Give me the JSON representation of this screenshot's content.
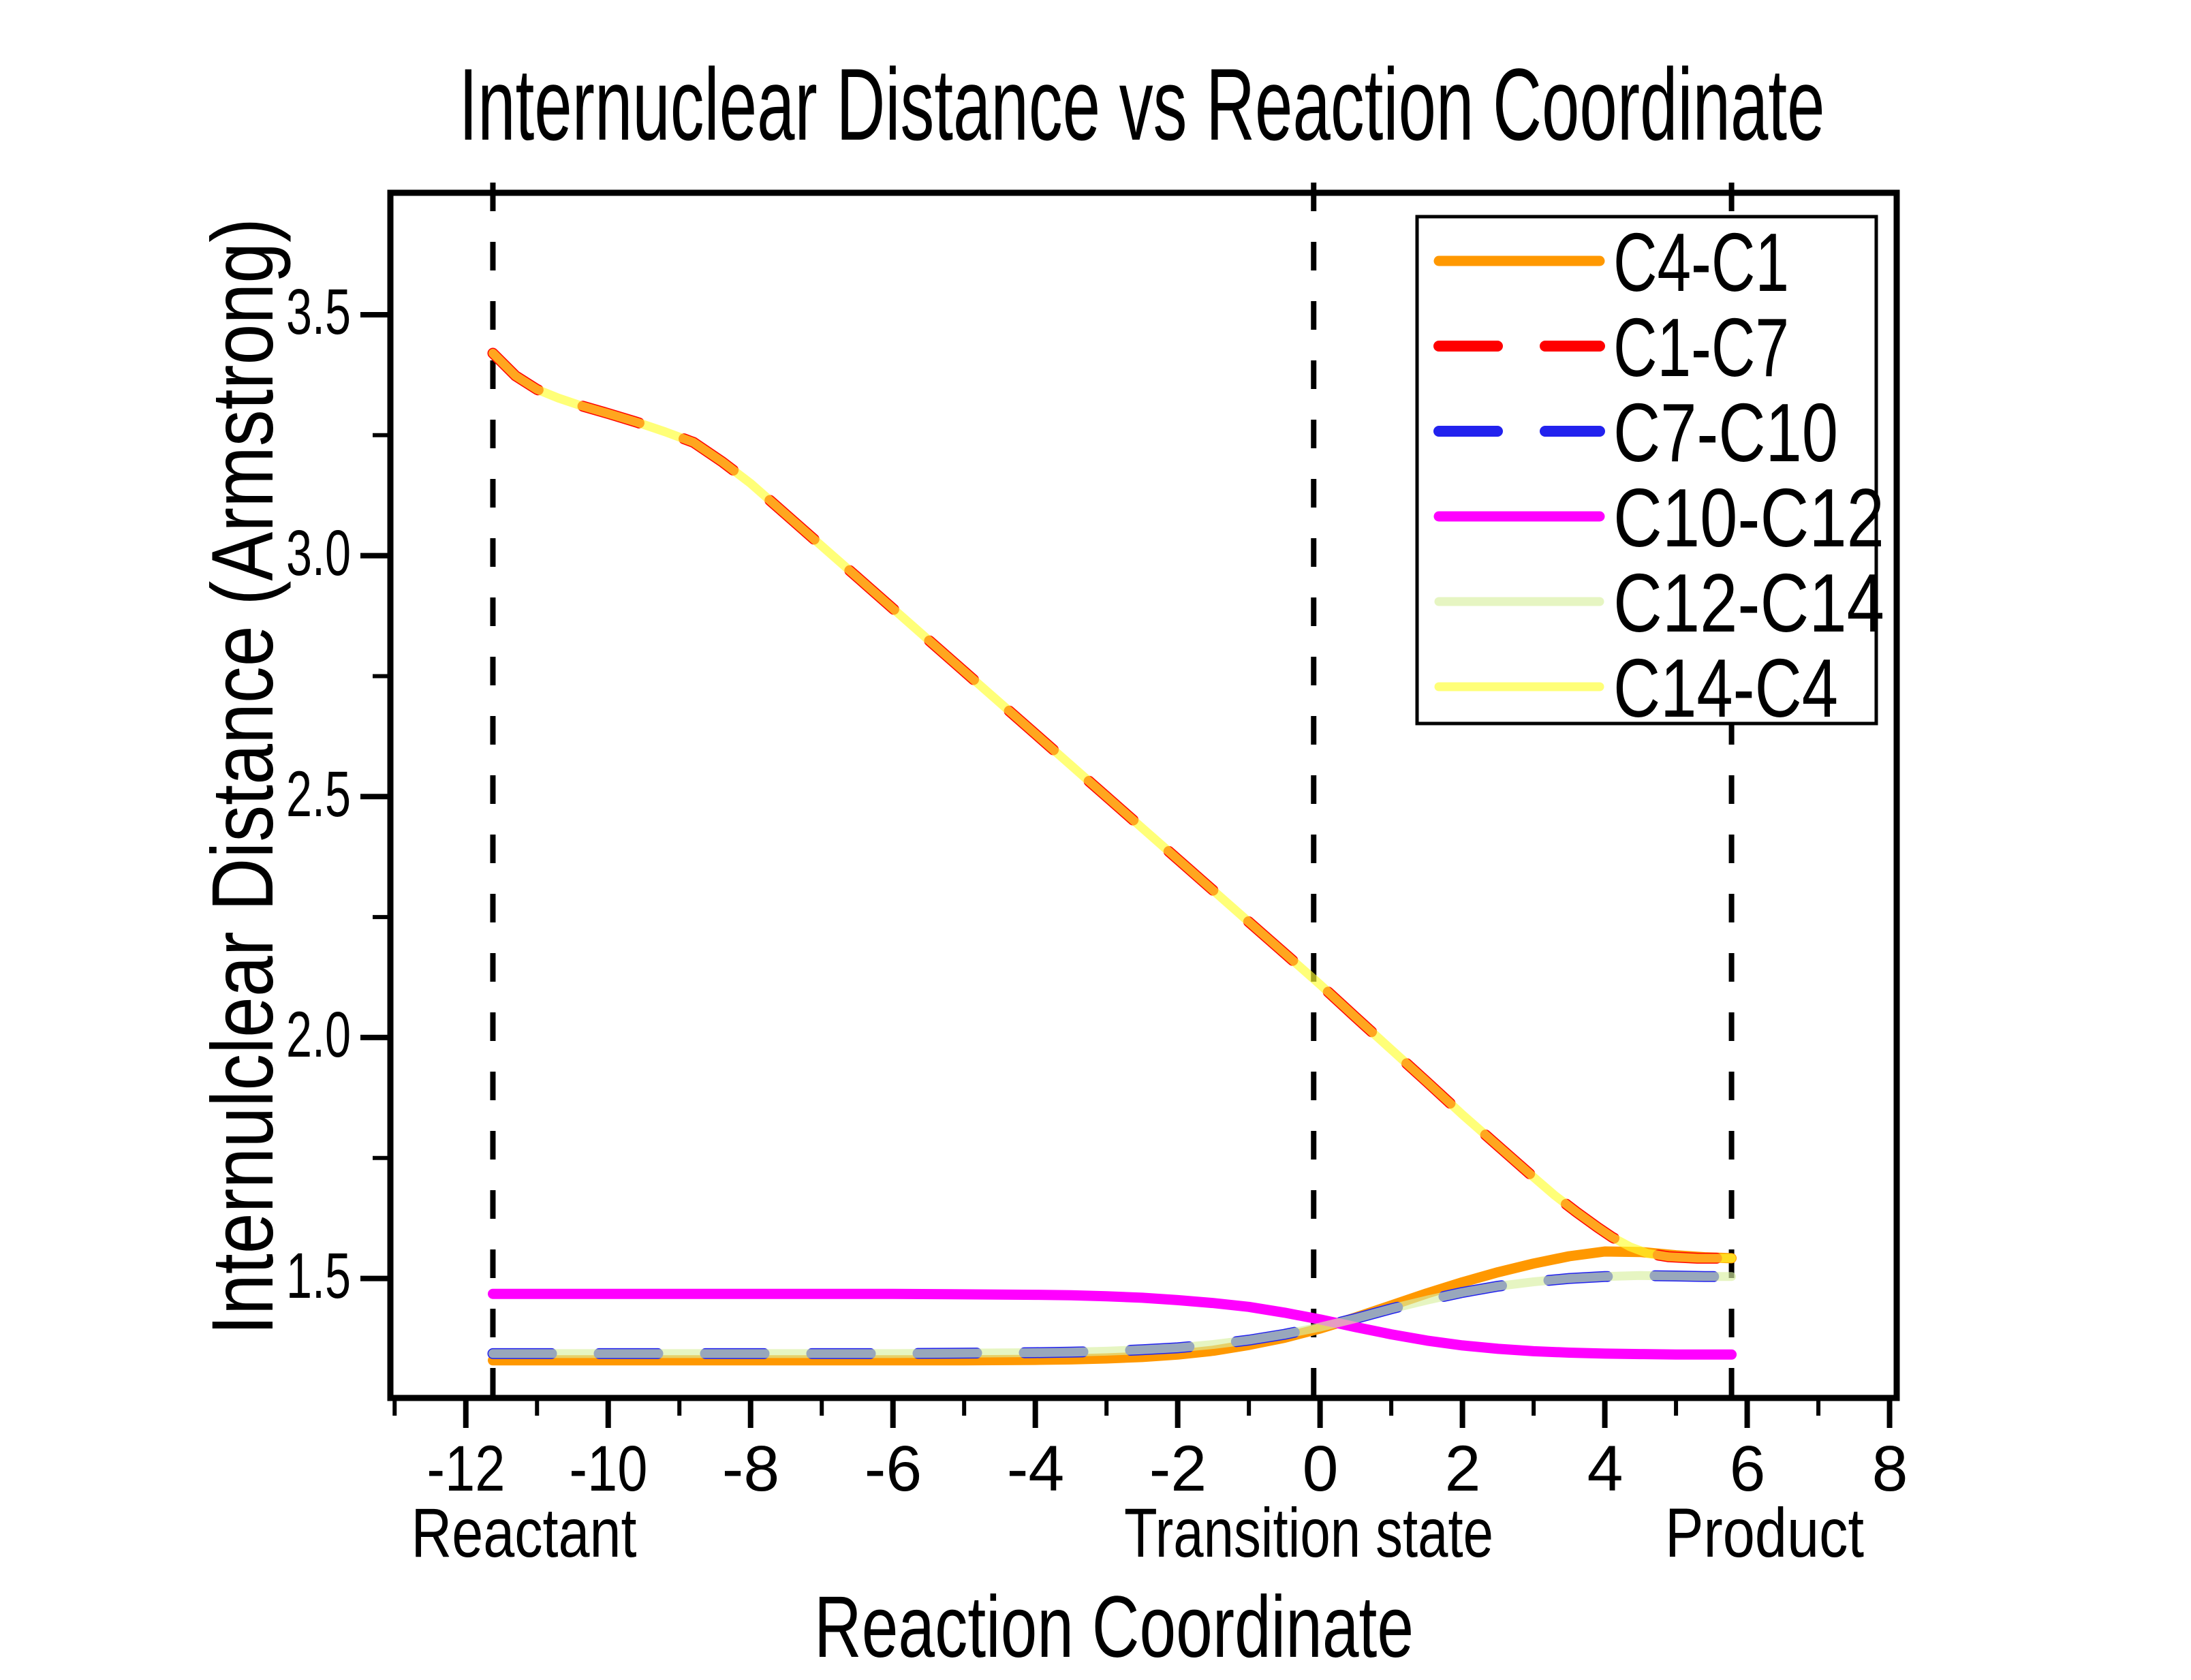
{
  "page": {
    "background_color": "#FFFFFF",
    "text_color": "#000000"
  },
  "chart_data": {
    "type": "line",
    "title": "Internuclear Distance vs Reaction Coordinate",
    "xlabel": "Reaction Coordinate",
    "ylabel": "Internulclear Distance (Armstrong)",
    "grid": false,
    "x_axis": {
      "min": -13.06,
      "max": 8.1,
      "major_ticks": [
        -12,
        -10,
        -8,
        -6,
        -4,
        -2,
        0,
        2,
        4,
        6,
        8
      ],
      "major_tick_labels": [
        "-12",
        "-10",
        "-8",
        "-6",
        "-4",
        "-2",
        "0",
        "2",
        "4",
        "6",
        "8"
      ],
      "minor_ticks": [
        -13,
        -11,
        -9,
        -7,
        -5,
        -3,
        -1,
        1,
        3,
        5,
        7
      ]
    },
    "y_axis": {
      "min": 1.252,
      "max": 3.753,
      "major_ticks": [
        1.5,
        2.0,
        2.5,
        3.0,
        3.5
      ],
      "major_tick_labels": [
        "1.5",
        "2.0",
        "2.5",
        "3.0",
        "3.5"
      ],
      "minor_ticks": [
        1.75,
        2.25,
        2.75,
        3.25
      ]
    },
    "annotations": {
      "vline_color": "#000000",
      "vlines": [
        {
          "label": "Reactant",
          "x": -11.62
        },
        {
          "label": "Transition state",
          "x": -0.09
        },
        {
          "label": "Product",
          "x": 5.78
        }
      ]
    },
    "legend": {
      "position": "top-right",
      "entries": [
        "C4-C1",
        "C1-C7",
        "C7-C10",
        "C10-C12",
        "C12-C14",
        "C14-C4"
      ]
    },
    "series": [
      {
        "name": "C4-C1",
        "color": "#FF9800",
        "style": "solid",
        "width": 15,
        "opacity": 1,
        "x": [
          -11.62,
          -10,
          -8,
          -6,
          -5,
          -4,
          -3.5,
          -3,
          -2.5,
          -2,
          -1.5,
          -1,
          -0.5,
          0,
          0.5,
          1,
          1.5,
          2,
          2.5,
          3,
          3.5,
          4,
          4.5,
          5,
          5.4,
          5.78
        ],
        "y": [
          1.33,
          1.33,
          1.33,
          1.33,
          1.33,
          1.331,
          1.332,
          1.334,
          1.337,
          1.342,
          1.35,
          1.362,
          1.377,
          1.396,
          1.419,
          1.444,
          1.469,
          1.492,
          1.513,
          1.531,
          1.546,
          1.556,
          1.555,
          1.548,
          1.544,
          1.542
        ]
      },
      {
        "name": "C1-C7",
        "color": "#FF0000",
        "style": "dashed",
        "dash": "86 70",
        "width": 16,
        "opacity": 1,
        "x": [
          -11.62,
          -11.3,
          -11,
          -10.7,
          -10.4,
          -10,
          -9.6,
          -9.2,
          -8.8,
          -8.4,
          -8,
          -7.5,
          -7,
          -6.5,
          -6,
          -5.5,
          -5,
          -4.5,
          -4,
          -3.5,
          -3,
          -2.5,
          -2,
          -1.5,
          -1,
          -0.5,
          0,
          0.5,
          1,
          1.5,
          2,
          2.5,
          3,
          3.3,
          3.6,
          3.9,
          4.1,
          4.35,
          4.6,
          4.9,
          5.3,
          5.78
        ],
        "y": [
          3.42,
          3.373,
          3.345,
          3.327,
          3.312,
          3.295,
          3.277,
          3.257,
          3.235,
          3.195,
          3.15,
          3.085,
          3.02,
          2.955,
          2.89,
          2.825,
          2.76,
          2.695,
          2.63,
          2.565,
          2.5,
          2.435,
          2.37,
          2.305,
          2.24,
          2.175,
          2.11,
          2.042,
          1.975,
          1.908,
          1.84,
          1.775,
          1.71,
          1.672,
          1.638,
          1.606,
          1.586,
          1.566,
          1.552,
          1.545,
          1.542,
          1.542
        ]
      },
      {
        "name": "C7-C10",
        "color": "#2222EE",
        "style": "dashed",
        "dash": "86 70",
        "width": 16,
        "opacity": 1,
        "x": [
          -11.62,
          -10,
          -8,
          -6,
          -5,
          -4,
          -3.5,
          -3,
          -2.5,
          -2,
          -1.5,
          -1,
          -0.5,
          0,
          0.5,
          1,
          1.5,
          2,
          2.5,
          3,
          3.5,
          4,
          4.5,
          5,
          5.4,
          5.78
        ],
        "y": [
          1.344,
          1.344,
          1.344,
          1.344,
          1.345,
          1.346,
          1.347,
          1.349,
          1.352,
          1.356,
          1.363,
          1.372,
          1.384,
          1.399,
          1.417,
          1.437,
          1.455,
          1.471,
          1.484,
          1.493,
          1.5,
          1.504,
          1.506,
          1.505,
          1.504,
          1.504
        ]
      },
      {
        "name": "C10-C12",
        "color": "#FF00FF",
        "style": "solid",
        "width": 15,
        "opacity": 1,
        "x": [
          -11.62,
          -10,
          -8,
          -6,
          -5,
          -4,
          -3.5,
          -3,
          -2.5,
          -2,
          -1.5,
          -1,
          -0.5,
          0,
          0.5,
          1,
          1.5,
          2,
          2.5,
          3,
          3.5,
          4,
          4.5,
          5,
          5.4,
          5.78
        ],
        "y": [
          1.468,
          1.468,
          1.468,
          1.468,
          1.467,
          1.466,
          1.465,
          1.463,
          1.46,
          1.455,
          1.449,
          1.441,
          1.429,
          1.415,
          1.399,
          1.384,
          1.371,
          1.361,
          1.354,
          1.349,
          1.346,
          1.344,
          1.343,
          1.342,
          1.342,
          1.342
        ]
      },
      {
        "name": "C12-C14",
        "color": "#D8EFA2",
        "style": "solid",
        "width": 13,
        "opacity": 0.65,
        "x": [
          -11.62,
          -10,
          -8,
          -6,
          -5,
          -4,
          -3.5,
          -3,
          -2.5,
          -2,
          -1.5,
          -1,
          -0.5,
          0,
          0.5,
          1,
          1.5,
          2,
          2.5,
          3,
          3.5,
          4,
          4.5,
          5,
          5.4,
          5.78
        ],
        "y": [
          1.344,
          1.344,
          1.344,
          1.344,
          1.345,
          1.346,
          1.347,
          1.349,
          1.352,
          1.356,
          1.363,
          1.372,
          1.384,
          1.399,
          1.417,
          1.437,
          1.455,
          1.471,
          1.484,
          1.493,
          1.5,
          1.504,
          1.506,
          1.505,
          1.504,
          1.504
        ]
      },
      {
        "name": "C14-C4",
        "color": "#FFFF30",
        "style": "solid",
        "width": 13,
        "opacity": 0.65,
        "x": [
          -11.62,
          -11.3,
          -11,
          -10.7,
          -10.4,
          -10,
          -9.6,
          -9.2,
          -8.8,
          -8.4,
          -8,
          -7.5,
          -7,
          -6.5,
          -6,
          -5.5,
          -5,
          -4.5,
          -4,
          -3.5,
          -3,
          -2.5,
          -2,
          -1.5,
          -1,
          -0.5,
          0,
          0.5,
          1,
          1.5,
          2,
          2.5,
          3,
          3.3,
          3.6,
          3.9,
          4.1,
          4.35,
          4.6,
          4.9,
          5.3,
          5.78
        ],
        "y": [
          3.42,
          3.373,
          3.345,
          3.327,
          3.312,
          3.295,
          3.277,
          3.257,
          3.235,
          3.195,
          3.15,
          3.085,
          3.02,
          2.955,
          2.89,
          2.825,
          2.76,
          2.695,
          2.63,
          2.565,
          2.5,
          2.435,
          2.37,
          2.305,
          2.24,
          2.175,
          2.11,
          2.042,
          1.975,
          1.908,
          1.84,
          1.775,
          1.71,
          1.672,
          1.638,
          1.606,
          1.586,
          1.566,
          1.552,
          1.545,
          1.542,
          1.542
        ]
      }
    ]
  }
}
